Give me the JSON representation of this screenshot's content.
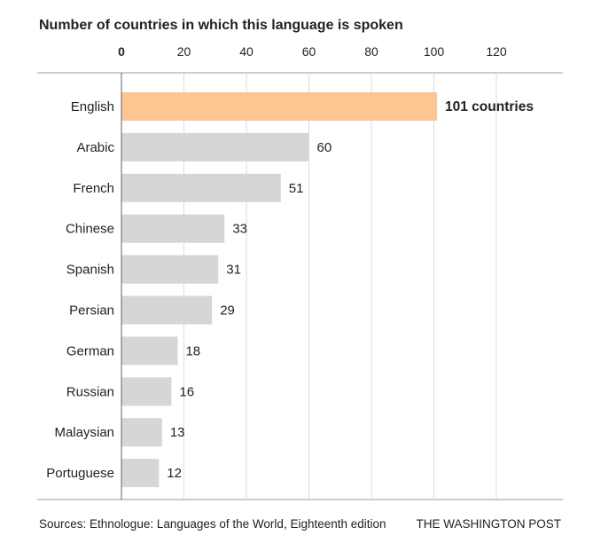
{
  "chart_data": {
    "type": "bar",
    "orientation": "horizontal",
    "title": "Number of countries in which this language is spoken",
    "categories": [
      "English",
      "Arabic",
      "French",
      "Chinese",
      "Spanish",
      "Persian",
      "German",
      "Russian",
      "Malaysian",
      "Portuguese"
    ],
    "values": [
      101,
      60,
      51,
      33,
      31,
      29,
      18,
      16,
      13,
      12
    ],
    "value_labels": [
      "101 countries",
      "60",
      "51",
      "33",
      "31",
      "29",
      "18",
      "16",
      "13",
      "12"
    ],
    "xlim": [
      0,
      140
    ],
    "xticks": [
      0,
      20,
      40,
      60,
      80,
      100,
      120
    ],
    "highlight_category": "English",
    "colors": {
      "highlight": "#fcc591",
      "bar": "#d6d6d6",
      "grid": "#dcdcdc",
      "axis": "#666666"
    }
  },
  "footer": {
    "source": "Sources: Ethnologue: Languages of the World, Eighteenth edition",
    "credit": "THE WASHINGTON POST"
  }
}
